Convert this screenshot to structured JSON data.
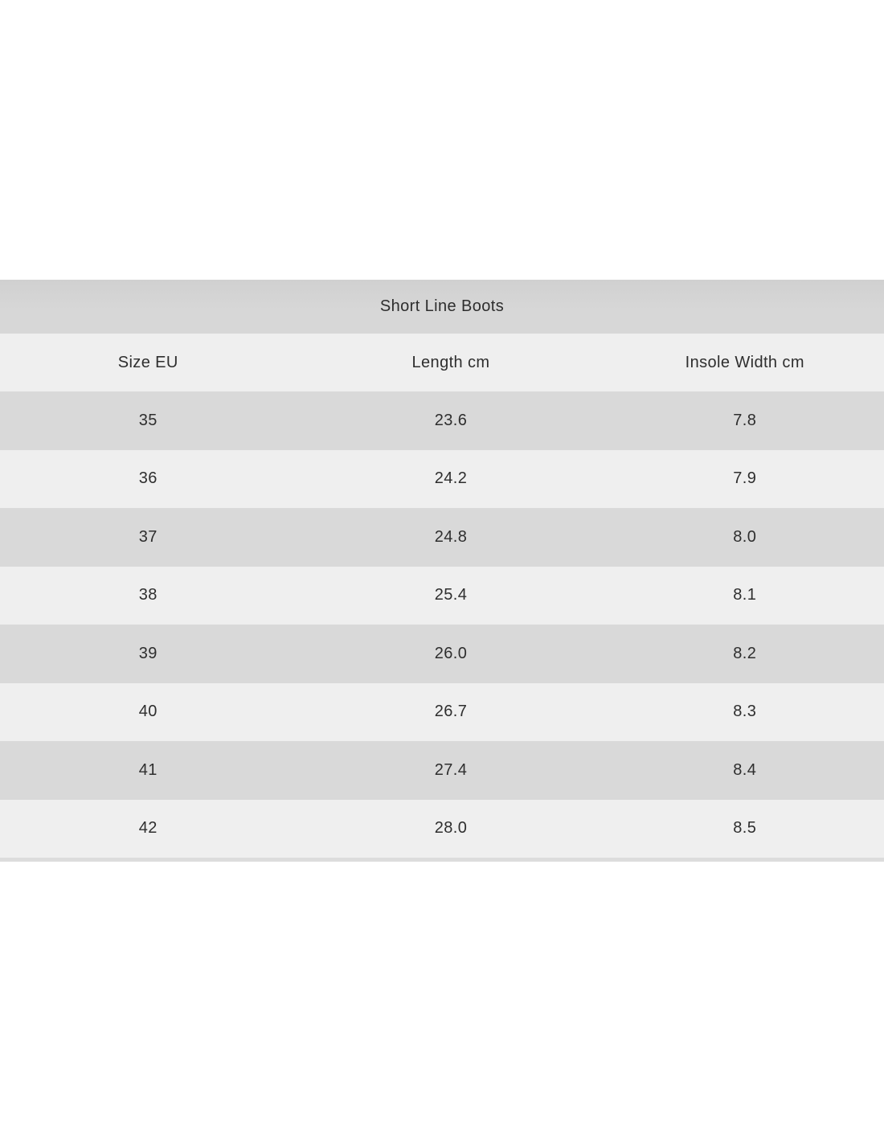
{
  "table": {
    "title": "Short Line Boots",
    "columns": [
      "Size EU",
      "Length cm",
      "Insole Width cm"
    ],
    "rows": [
      [
        "35",
        "23.6",
        "7.8"
      ],
      [
        "36",
        "24.2",
        "7.9"
      ],
      [
        "37",
        "24.8",
        "8.0"
      ],
      [
        "38",
        "25.4",
        "8.1"
      ],
      [
        "39",
        "26.0",
        "8.2"
      ],
      [
        "40",
        "26.7",
        "8.3"
      ],
      [
        "41",
        "27.4",
        "8.4"
      ],
      [
        "42",
        "28.0",
        "8.5"
      ]
    ],
    "colors": {
      "title_band": "#d5d5d5",
      "row_dark": "#d9d9d9",
      "row_light": "#efefef",
      "bottom_strip": "#dcdcdc",
      "text": "#2e2e2e",
      "page_background": "#ffffff"
    }
  },
  "chart_data": {
    "type": "table",
    "title": "Short Line Boots",
    "columns": [
      "Size EU",
      "Length cm",
      "Insole Width cm"
    ],
    "rows": [
      [
        35,
        23.6,
        7.8
      ],
      [
        36,
        24.2,
        7.9
      ],
      [
        37,
        24.8,
        8.0
      ],
      [
        38,
        25.4,
        8.1
      ],
      [
        39,
        26.0,
        8.2
      ],
      [
        40,
        26.7,
        8.3
      ],
      [
        41,
        27.4,
        8.4
      ],
      [
        42,
        28.0,
        8.5
      ]
    ]
  }
}
